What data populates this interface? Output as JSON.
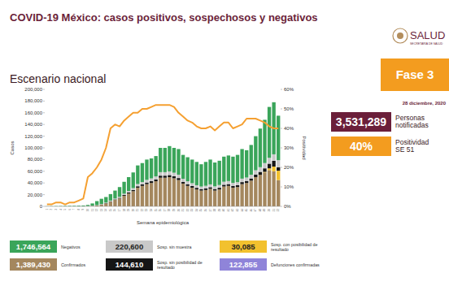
{
  "header": {
    "title": "COVID-19 México: casos positivos, sospechosos y negativos",
    "subtitle": "Escenario nacional",
    "phase": "Fase 3",
    "phase_color": "#f39c1f",
    "date": "28 diciembre, 2020",
    "logo_text": "SALUD",
    "logo_subtext": "SECRETARÍA DE SALUD"
  },
  "boxes": [
    {
      "value": "3,531,289",
      "caption": "Personas notificadas",
      "color": "#6b1f3a"
    },
    {
      "value": "40%",
      "caption": "Positividad SE 51",
      "color": "#f39c1f"
    }
  ],
  "deaths": {
    "name": "Defunciones confirmadas",
    "total": "122,855",
    "color": "#8f84d9"
  },
  "chart_data": {
    "type": "bar",
    "stacked": true,
    "grid": false,
    "x_label": "Semana epidemiológica",
    "y_label": "Casos",
    "y2_label": "Positividad",
    "categories": [
      1,
      2,
      3,
      4,
      5,
      6,
      7,
      8,
      9,
      10,
      11,
      12,
      13,
      14,
      15,
      16,
      17,
      18,
      19,
      20,
      21,
      22,
      23,
      24,
      25,
      26,
      27,
      28,
      29,
      30,
      31,
      32,
      33,
      34,
      35,
      36,
      37,
      38,
      39,
      40,
      41,
      42,
      43,
      44,
      45,
      46,
      47,
      48,
      49,
      50,
      51,
      52
    ],
    "ylim": [
      0,
      200000
    ],
    "yticks": [
      0,
      {
        "value": 20000,
        "label": "20,000"
      },
      {
        "value": 40000,
        "label": "40,000"
      },
      {
        "value": 60000,
        "label": "60,000"
      },
      {
        "value": 80000,
        "label": "80,000"
      },
      {
        "value": 100000,
        "label": "100,000"
      },
      {
        "value": 120000,
        "label": "120,000"
      },
      {
        "value": 140000,
        "label": "140,000"
      },
      {
        "value": 160000,
        "label": "160,000"
      },
      {
        "value": 180000,
        "label": "180,000"
      },
      {
        "value": 200000,
        "label": "200,000"
      }
    ],
    "y2lim": [
      0,
      60
    ],
    "y2ticks": [
      {
        "value": 0,
        "label": "0%"
      },
      {
        "value": 10,
        "label": "10%"
      },
      {
        "value": 20,
        "label": "20%"
      },
      {
        "value": 30,
        "label": "30%"
      },
      {
        "value": 40,
        "label": "40%"
      },
      {
        "value": 50,
        "label": "50%"
      },
      {
        "value": 60,
        "label": "60%"
      }
    ],
    "series": [
      {
        "name": "Confirmados",
        "total": "1,389,430",
        "color": "#a4875e",
        "type": "bar",
        "values": [
          0,
          0,
          0,
          0,
          0,
          0,
          5,
          10,
          40,
          300,
          800,
          1500,
          3000,
          5000,
          8000,
          11000,
          13500,
          18000,
          22000,
          26000,
          32000,
          35000,
          38000,
          40000,
          43000,
          49000,
          49000,
          50000,
          48000,
          45000,
          39000,
          35000,
          32000,
          29000,
          27000,
          28000,
          30000,
          27000,
          29000,
          34000,
          35000,
          32000,
          33000,
          38000,
          40000,
          44000,
          50000,
          54000,
          58000,
          62000,
          60000,
          45000
        ]
      },
      {
        "name": "Sosp. con posibilidad de resultado",
        "total": "30,085",
        "color": "#f2c12e",
        "type": "bar",
        "values": [
          0,
          0,
          0,
          0,
          0,
          0,
          0,
          0,
          0,
          0,
          0,
          0,
          0,
          0,
          0,
          0,
          0,
          0,
          0,
          0,
          0,
          0,
          0,
          0,
          0,
          0,
          0,
          0,
          0,
          0,
          0,
          0,
          0,
          0,
          0,
          0,
          0,
          0,
          0,
          0,
          0,
          0,
          0,
          0,
          0,
          0,
          0,
          0,
          1000,
          3000,
          8000,
          16000
        ]
      },
      {
        "name": "Sosp. sin posibilidad de resultado",
        "total": "144,610",
        "color": "#151515",
        "type": "bar",
        "values": [
          0,
          0,
          0,
          0,
          0,
          0,
          0,
          0,
          0,
          50,
          100,
          200,
          300,
          500,
          700,
          900,
          1100,
          1400,
          1700,
          2000,
          2400,
          2600,
          2800,
          3000,
          3200,
          3500,
          3500,
          3600,
          3500,
          3400,
          3000,
          2900,
          2800,
          2700,
          2600,
          2700,
          2800,
          2700,
          2800,
          3000,
          3100,
          3000,
          3100,
          3500,
          3500,
          3800,
          4500,
          5000,
          6000,
          8000,
          10000,
          6000
        ]
      },
      {
        "name": "Sosp. sin muestra",
        "total": "220,600",
        "color": "#c9c9c9",
        "type": "bar",
        "values": [
          0,
          0,
          0,
          0,
          0,
          0,
          0,
          0,
          0,
          150,
          300,
          500,
          700,
          900,
          1200,
          1500,
          1800,
          2200,
          2700,
          3200,
          3800,
          4000,
          4500,
          4800,
          5000,
          6000,
          6000,
          6200,
          6000,
          5800,
          5200,
          5000,
          4800,
          4500,
          4300,
          4500,
          4800,
          4500,
          4700,
          5100,
          5200,
          5100,
          5300,
          5900,
          5800,
          6300,
          7200,
          8000,
          9000,
          10000,
          11000,
          12000
        ]
      },
      {
        "name": "Negativos",
        "total": "1,746,564",
        "color": "#3aa55a",
        "type": "bar",
        "values": [
          200,
          400,
          500,
          600,
          800,
          900,
          995,
          1190,
          1460,
          2000,
          3800,
          6800,
          9000,
          9600,
          11100,
          13600,
          16600,
          20400,
          23600,
          26800,
          31800,
          32400,
          34700,
          34200,
          34800,
          41500,
          41500,
          43200,
          42500,
          43800,
          40800,
          41100,
          40400,
          39800,
          38100,
          40800,
          42400,
          40800,
          41500,
          42900,
          43700,
          44900,
          46600,
          50600,
          46700,
          50900,
          58300,
          66000,
          74000,
          87000,
          89000,
          76000
        ]
      },
      {
        "type": "line",
        "axis": "y2",
        "color": "#f5a031",
        "values": [
          1,
          1,
          2,
          2,
          1,
          2,
          2,
          3,
          4,
          15,
          17,
          20,
          24,
          30,
          40,
          42,
          41,
          44,
          46,
          48,
          48,
          50,
          50,
          51,
          52,
          52,
          52,
          52,
          51,
          48,
          46,
          44,
          43,
          41,
          40,
          40,
          41,
          39,
          41,
          43,
          43,
          40,
          41,
          42,
          45,
          45,
          45,
          44,
          43,
          41,
          40,
          40
        ]
      }
    ]
  }
}
